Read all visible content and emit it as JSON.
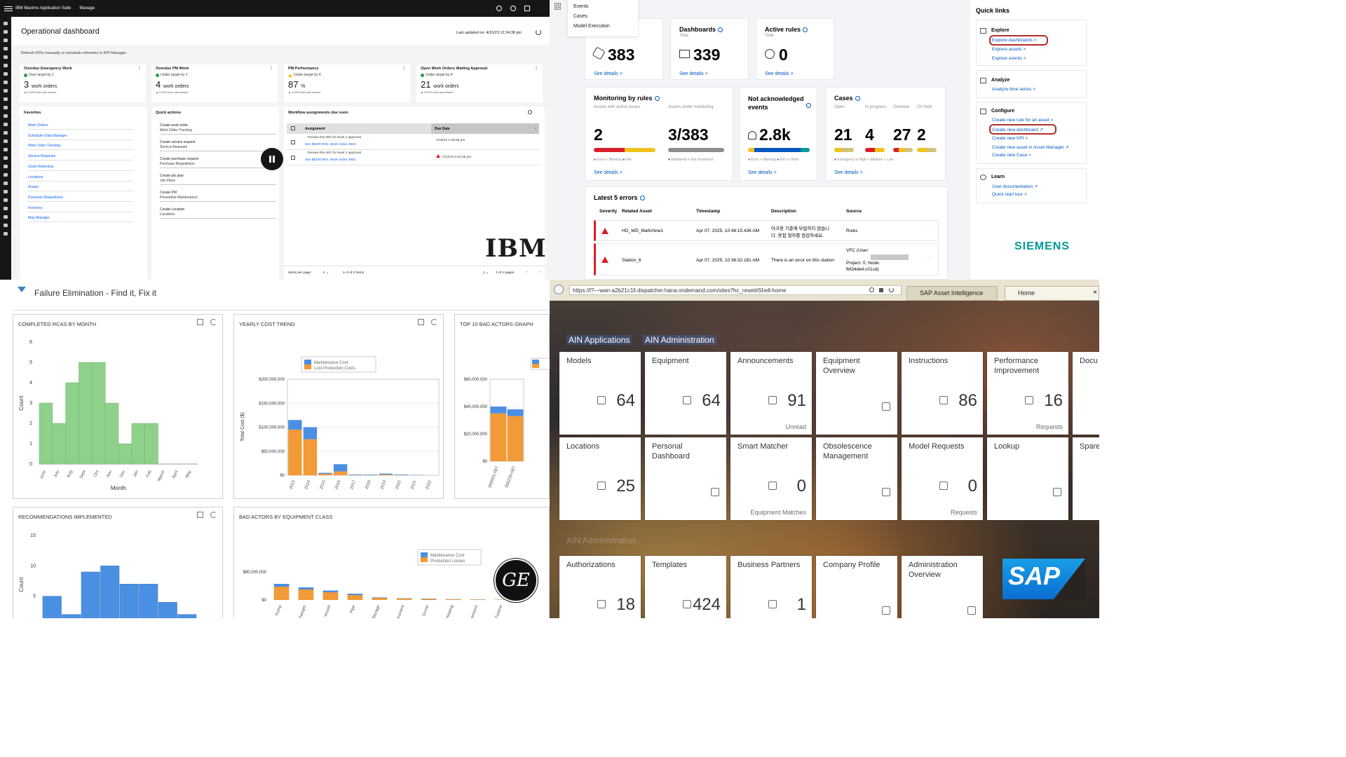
{
  "ibm": {
    "brand": "IBM Maximo Application Suite",
    "module": "Manage",
    "title": "Operational dashboard",
    "updated": "Last updated on: 4/15/23 12:34:38 pm",
    "note": "Refresh KPIs manually or schedule refreshes in KPI Manager.",
    "kpis": [
      {
        "title": "Overdue Emergency Work",
        "status": "Over target by 1",
        "status_color": "#24a148",
        "value": "3",
        "unit": "work orders",
        "foot": "▲ 0.00% from last refresh"
      },
      {
        "title": "Overdue PM Work",
        "status": "Under target by 1",
        "status_color": "#24a148",
        "value": "4",
        "unit": "work orders",
        "foot": "▲ 0.00% from last refresh"
      },
      {
        "title": "PM Performance",
        "status": "Under target by 8",
        "status_color": "#f1c21b",
        "value": "87",
        "unit": "%",
        "foot": "▲ 0.00% from last refresh"
      },
      {
        "title": "Open Work Orders Waiting Approval",
        "status": "Under target by 4",
        "status_color": "#24a148",
        "value": "21",
        "unit": "work orders",
        "foot": "▲ 0.00% from last refresh"
      }
    ],
    "favorites_title": "Favorites",
    "favorites": [
      "Work Orders",
      "Scheduler Data Manager",
      "Work Order Tracking",
      "Service Requests",
      "Quick Reporting",
      "Locations",
      "Assets",
      "Purchase Requisitions",
      "Inventory",
      "Map Manager"
    ],
    "quick_title": "Quick actions",
    "quick": [
      {
        "a": "Create work order",
        "b": "Work Order Tracking"
      },
      {
        "a": "Create service request",
        "b": "Service Requests"
      },
      {
        "a": "Create purchase request",
        "b": "Purchase Requisitions"
      },
      {
        "a": "Create job plan",
        "b": "Job Plans"
      },
      {
        "a": "Create PM",
        "b": "Preventive Maintenance"
      },
      {
        "a": "Create Location",
        "b": "Locations"
      }
    ],
    "wf_title": "Workflow assignments due soon",
    "wf_col_assign": "Assignment",
    "wf_col_due": "Due Date",
    "wf_rows": [
      {
        "a": "Review this WO for level 1 approval",
        "b": "Site BEDFORD, Work Order 3953",
        "d": "4/15/23 1:30:55 pm"
      },
      {
        "a": "Review this WO for level 1 approval",
        "b": "Site BEDFORD, Work Order 3952",
        "d": "4/13/23 6:24:35 pm"
      }
    ],
    "wf_items_per_page": "Items per page:",
    "wf_ipp_value": "4",
    "wf_range": "1–2 of 2 items",
    "wf_page": "1",
    "wf_pages": "1 of 1 pages",
    "logo": "IBM"
  },
  "siemens": {
    "menu": [
      "Events",
      "Cases",
      "Model Execution"
    ],
    "assets_value": "383",
    "dashboards_title": "Dashboards",
    "dashboards_sub": "Total",
    "dashboards_value": "339",
    "rules_title": "Active rules",
    "rules_sub": "Total",
    "rules_value": "0",
    "see_details": "See details >",
    "mon_title": "Monitoring by rules",
    "mon_sub1": "Assets with active issues",
    "mon_sub2": "Assets under monitoring",
    "mon_val1": "2",
    "mon_val2": "3/383",
    "mon_leg1": [
      "Error",
      "Warning",
      "Info"
    ],
    "mon_leg2": [
      "Monitored",
      "Not monitored"
    ],
    "nack_title": "Not acknowledged events",
    "nack_value": "2.8k",
    "nack_leg": [
      "Error",
      "Warning",
      "Info",
      "Other"
    ],
    "cases_title": "Cases",
    "cases_cols": [
      "Open",
      "In progress",
      "Overdue",
      "On hold"
    ],
    "cases_vals": [
      "21",
      "4",
      "27",
      "2"
    ],
    "cases_leg": [
      "Emergency",
      "High",
      "Medium",
      "Low"
    ],
    "err_title": "Latest 5 errors",
    "err_cols": [
      "Severity",
      "Related Asset",
      "Timestamp",
      "Description",
      "Source"
    ],
    "err_rows": [
      {
        "asset": "HD_WD_Mahchine1",
        "ts": "Apr 07, 2025, 10:48:15.436 AM",
        "desc1": "아크용 기준에 부합하지 않습니",
        "desc2": "다. 용접 절차를 점검하세요.",
        "src1": "Rules",
        "src2": "",
        "src3": ""
      },
      {
        "asset": "Station_6",
        "ts": "Apr 07, 2025, 10:36:32.181 AM",
        "desc1": "There is an error on this station",
        "desc2": "",
        "src1": "VFC (User:",
        "src2": "Project: 0, Node:",
        "src3": "fbf34de4.c01cd)"
      }
    ],
    "ql_title": "Quick links",
    "explore": "Explore",
    "explore_links": [
      "Explore dashboards >",
      "Explore assets >",
      "Explore events >"
    ],
    "analyze": "Analyze",
    "analyze_links": [
      "Analyze time series >"
    ],
    "configure": "Configure",
    "configure_links": [
      "Create new rule for an asset >",
      "Create new dashboard ↗",
      "Create new KPI >",
      "Create new asset in Asset Manager ↗",
      "Create new Case >"
    ],
    "learn": "Learn",
    "learn_links": [
      "User documentation ↗",
      "Quick start tour >"
    ],
    "logo": "SIEMENS"
  },
  "ge": {
    "title": "Failure Elimination - Find it, Fix it",
    "logo": "GE",
    "rcas": {
      "title": "COMPLETED RCAS BY MONTH",
      "xlabel": "Month",
      "ylabel": "Count",
      "yticks": [
        "0",
        "1",
        "2",
        "3",
        "4",
        "5",
        "6"
      ],
      "months": [
        "June",
        "July",
        "Aug",
        "Sept",
        "Oct",
        "Nov",
        "Dec",
        "Jan",
        "Feb",
        "March",
        "April",
        "May"
      ]
    },
    "cost": {
      "title": "YEARLY COST TREND",
      "ylabel": "Total Cost ($)",
      "yticks": [
        "$0",
        "$50,000,000",
        "$100,000,000",
        "$150,000,000",
        "$200,000,000"
      ],
      "legend": [
        "Maintenance Cost",
        "Lost Production Costs"
      ]
    },
    "top10": {
      "title": "TOP 10 BAD ACTORS GRAPH",
      "yticks": [
        "$0",
        "$20,000,000",
        "$40,000,000",
        "$60,000,000"
      ],
      "xticks": [
        "000001-087",
        "000226-087"
      ]
    },
    "rec": {
      "title": "RECOMMENDATIONS IMPLEMENTED",
      "ylabel": "Count",
      "yticks": [
        "5",
        "10",
        "15"
      ]
    },
    "baec": {
      "title": "BAD ACTORS BY EQUIPMENT CLASS",
      "yticks": [
        "$0",
        "$80,000,000"
      ],
      "legend": [
        "Maintenance Cost",
        "Production Losses"
      ],
      "xticks": [
        "Pump",
        "Exchanger",
        "Vessel",
        "Pipe",
        "Storage",
        "Instrument",
        "Screw",
        "Heating",
        "Compressor",
        "Turbine"
      ]
    }
  },
  "sap": {
    "url": "https://l?—wan-a2b21c1ll.dispatcher.hana.ondemand.com/sites?hc_reset#Shell-home",
    "tab1": "SAP Asset Intelligence",
    "tab2": "Home",
    "group1": "AIN Applications",
    "group2": "AIN Administration",
    "faded": "AIN Administration",
    "tiles": [
      {
        "t": "Models",
        "v": "64",
        "f": ""
      },
      {
        "t": "Equipment",
        "v": "64",
        "f": ""
      },
      {
        "t": "Announcements",
        "v": "91",
        "f": "Unread"
      },
      {
        "t": "Equipment Overview",
        "v": "",
        "f": ""
      },
      {
        "t": "Instructions",
        "v": "86",
        "f": ""
      },
      {
        "t": "Performance Improvement",
        "v": "16",
        "f": "Requests"
      },
      {
        "t": "Docu",
        "v": "",
        "f": ""
      },
      {
        "t": "Locations",
        "v": "25",
        "f": ""
      },
      {
        "t": "Personal Dashboard",
        "v": "",
        "f": ""
      },
      {
        "t": "Smart Matcher",
        "v": "0",
        "f": "Equipment Matches"
      },
      {
        "t": "Obsolescence Management",
        "v": "",
        "f": ""
      },
      {
        "t": "Model Requests",
        "v": "0",
        "f": "Requests"
      },
      {
        "t": "Lookup",
        "v": "",
        "f": ""
      },
      {
        "t": "Spare",
        "v": "",
        "f": ""
      },
      {
        "t": "Authorizations",
        "v": "18",
        "f": ""
      },
      {
        "t": "Templates",
        "v": "424",
        "f": ""
      },
      {
        "t": "Business Partners",
        "v": "1",
        "f": ""
      },
      {
        "t": "Company Profile",
        "v": "",
        "f": ""
      },
      {
        "t": "Administration Overview",
        "v": "",
        "f": ""
      }
    ],
    "logo": "SAP"
  },
  "chart_data": [
    {
      "type": "bar",
      "title": "COMPLETED RCAS BY MONTH",
      "xlabel": "Month",
      "ylabel": "Count",
      "ylim": [
        0,
        6
      ],
      "categories": [
        "June",
        "July",
        "Aug",
        "Sept",
        "Oct",
        "Nov",
        "Dec",
        "Jan",
        "Feb",
        "March",
        "April",
        "May"
      ],
      "values": [
        3,
        2,
        4,
        5,
        5,
        3,
        1,
        2,
        2,
        0,
        0,
        0
      ],
      "color": "#8fd18b"
    },
    {
      "type": "bar",
      "title": "YEARLY COST TREND",
      "ylabel": "Total Cost ($)",
      "ylim": [
        0,
        200000000
      ],
      "categories": [
        "2013",
        "2014",
        "2015",
        "2016",
        "2017",
        "2018",
        "2019",
        "2020",
        "2021",
        "2022"
      ],
      "series": [
        {
          "name": "Maintenance Cost",
          "values": [
            20000000,
            25000000,
            2000000,
            15000000,
            1000000,
            1000000,
            2000000,
            1000000,
            500000,
            0
          ]
        },
        {
          "name": "Lost Production Costs",
          "values": [
            95000000,
            75000000,
            3000000,
            8000000,
            500000,
            500000,
            1500000,
            500000,
            0,
            0
          ]
        }
      ],
      "colors": [
        "#4a90e2",
        "#f29a38"
      ]
    },
    {
      "type": "bar",
      "title": "TOP 10 BAD ACTORS GRAPH",
      "ylim": [
        0,
        60000000
      ],
      "categories": [
        "000001-087",
        "000226-087"
      ],
      "series": [
        {
          "name": "Maintenance Cost",
          "values": [
            5000000,
            5000000
          ]
        },
        {
          "name": "Lost Production Costs",
          "values": [
            35000000,
            33000000
          ]
        }
      ],
      "colors": [
        "#4a90e2",
        "#f29a38"
      ]
    },
    {
      "type": "bar",
      "title": "RECOMMENDATIONS IMPLEMENTED",
      "ylabel": "Count",
      "ylim": [
        0,
        15
      ],
      "categories": [
        "",
        "",
        "",
        "",
        "",
        "",
        "",
        ""
      ],
      "values": [
        5,
        2,
        9,
        10,
        7,
        7,
        4,
        2
      ],
      "color": "#4a90e2"
    },
    {
      "type": "bar",
      "title": "BAD ACTORS BY EQUIPMENT CLASS",
      "ylim": [
        0,
        80000000
      ],
      "categories": [
        "Pump",
        "Exchanger",
        "Vessel",
        "Pipe",
        "Storage",
        "Instrument",
        "Screw",
        "Heating",
        "Compressor",
        "Turbine"
      ],
      "series": [
        {
          "name": "Maintenance Cost",
          "values": [
            8000000,
            6000000,
            5000000,
            4000000,
            1500000,
            1000000,
            1000000,
            500000,
            500000,
            300000
          ]
        },
        {
          "name": "Production Losses",
          "values": [
            38000000,
            30000000,
            22000000,
            14000000,
            6000000,
            4000000,
            3000000,
            2000000,
            1500000,
            1000000
          ]
        }
      ],
      "colors": [
        "#4a90e2",
        "#f29a38"
      ]
    }
  ]
}
